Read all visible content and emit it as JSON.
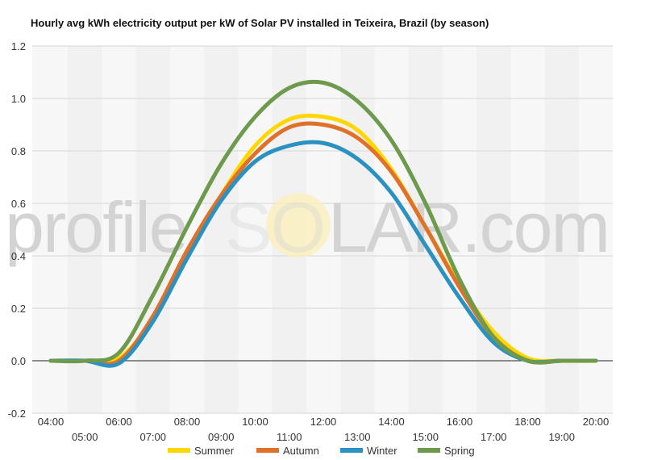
{
  "chart_data": {
    "type": "line",
    "title": "Hourly avg kWh electricity output per kW of Solar PV installed in Teixeira, Brazil (by season)",
    "xlabel": "",
    "ylabel": "",
    "x": [
      "04:00",
      "05:00",
      "06:00",
      "07:00",
      "08:00",
      "09:00",
      "10:00",
      "11:00",
      "12:00",
      "13:00",
      "14:00",
      "15:00",
      "16:00",
      "17:00",
      "18:00",
      "19:00",
      "20:00"
    ],
    "ylim": [
      -0.2,
      1.2
    ],
    "yticks": [
      "-0.2",
      "0.0",
      "0.2",
      "0.4",
      "0.6",
      "0.8",
      "1.0",
      "1.2"
    ],
    "grid": true,
    "legend_position": "bottom",
    "watermark": {
      "left": "profile",
      "right": "LAR.com",
      "sun_letters": "SO"
    },
    "series": [
      {
        "name": "Summer",
        "color": "#FFD700",
        "values": [
          0.0,
          0.0,
          0.01,
          0.16,
          0.39,
          0.63,
          0.82,
          0.92,
          0.93,
          0.88,
          0.73,
          0.51,
          0.29,
          0.11,
          0.01,
          0.0,
          0.0
        ]
      },
      {
        "name": "Autumn",
        "color": "#E0712A",
        "values": [
          0.0,
          0.0,
          0.0,
          0.17,
          0.42,
          0.63,
          0.79,
          0.89,
          0.9,
          0.85,
          0.72,
          0.51,
          0.28,
          0.09,
          0.0,
          0.0,
          0.0
        ]
      },
      {
        "name": "Winter",
        "color": "#2A91C0",
        "values": [
          0.0,
          0.0,
          -0.01,
          0.15,
          0.39,
          0.61,
          0.76,
          0.82,
          0.83,
          0.77,
          0.64,
          0.44,
          0.24,
          0.07,
          0.0,
          0.0,
          0.0
        ]
      },
      {
        "name": "Spring",
        "color": "#6E9A4E",
        "values": [
          0.0,
          0.0,
          0.03,
          0.25,
          0.51,
          0.75,
          0.93,
          1.04,
          1.06,
          0.99,
          0.84,
          0.6,
          0.31,
          0.09,
          0.0,
          0.0,
          0.0
        ]
      }
    ]
  }
}
